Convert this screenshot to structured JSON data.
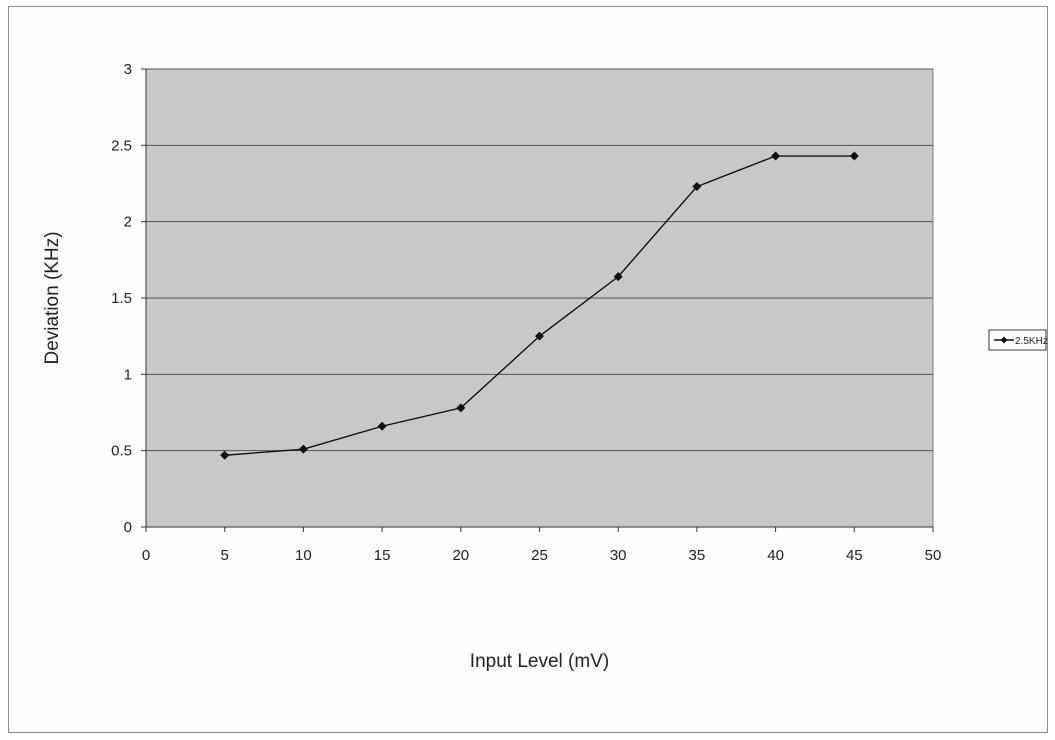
{
  "chart_data": {
    "type": "line",
    "title": "",
    "xlabel": "Input Level (mV)",
    "ylabel": "Deviation (KHz)",
    "xlim": [
      0,
      50
    ],
    "ylim": [
      0,
      3
    ],
    "x_ticks": [
      "0",
      "5",
      "10",
      "15",
      "20",
      "25",
      "30",
      "35",
      "40",
      "45",
      "50"
    ],
    "y_ticks": [
      "0",
      "0.5",
      "1",
      "1.5",
      "2",
      "2.5",
      "3"
    ],
    "grid": "horizontal",
    "legend_position": "right",
    "plot_background": "#c8c8c8",
    "series": [
      {
        "name": "2.5KHz",
        "color": "#111111",
        "marker": "diamond",
        "x": [
          5,
          10,
          15,
          20,
          25,
          30,
          35,
          40,
          45
        ],
        "y": [
          0.47,
          0.51,
          0.66,
          0.78,
          1.25,
          1.64,
          2.23,
          2.43,
          2.43
        ]
      }
    ]
  }
}
